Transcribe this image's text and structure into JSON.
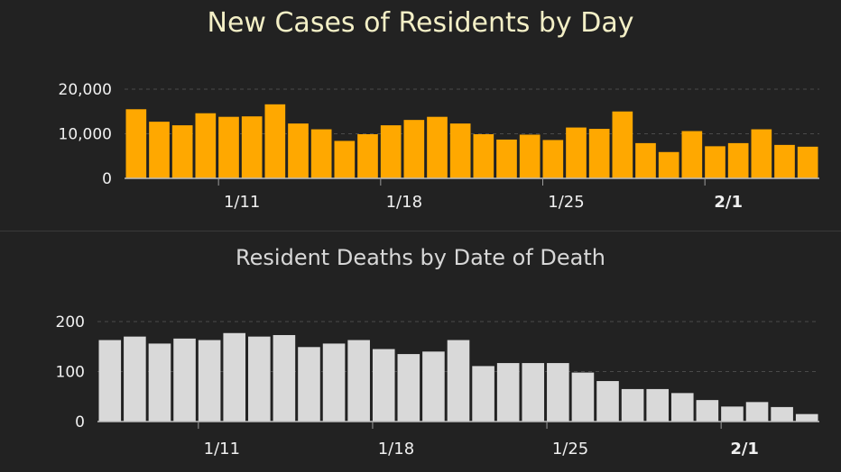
{
  "chart_data": [
    {
      "type": "bar",
      "title": "New Cases of Residents by Day",
      "bar_color": "#ffa800",
      "ylim": [
        0,
        20000
      ],
      "yticks": [
        {
          "value": 0,
          "label": "0"
        },
        {
          "value": 10000,
          "label": "10,000"
        },
        {
          "value": 20000,
          "label": "20,000"
        }
      ],
      "xticks": [
        {
          "index": 4,
          "label": "1/11",
          "bold": false
        },
        {
          "index": 11,
          "label": "1/18",
          "bold": false
        },
        {
          "index": 18,
          "label": "1/25",
          "bold": false
        },
        {
          "index": 25,
          "label": "2/1",
          "bold": true
        }
      ],
      "grid": "dashed horizontal",
      "values": [
        15500,
        12700,
        11900,
        14600,
        13800,
        13900,
        16600,
        12300,
        11000,
        8400,
        9900,
        11900,
        13100,
        13800,
        12300,
        9900,
        8700,
        9800,
        8600,
        11400,
        11100,
        15000,
        7900,
        5900,
        10600,
        7200,
        7900,
        11000,
        7500,
        7100
      ]
    },
    {
      "type": "bar",
      "title": "Resident Deaths by Date of Death",
      "bar_color": "#d9d9d9",
      "ylim": [
        0,
        200
      ],
      "yticks": [
        {
          "value": 0,
          "label": "0"
        },
        {
          "value": 100,
          "label": "100"
        },
        {
          "value": 200,
          "label": "200"
        }
      ],
      "xticks": [
        {
          "index": 4,
          "label": "1/11",
          "bold": false
        },
        {
          "index": 11,
          "label": "1/18",
          "bold": false
        },
        {
          "index": 18,
          "label": "1/25",
          "bold": false
        },
        {
          "index": 25,
          "label": "2/1",
          "bold": true
        }
      ],
      "grid": "dashed horizontal",
      "values": [
        163,
        170,
        156,
        166,
        163,
        177,
        170,
        173,
        149,
        156,
        163,
        145,
        135,
        140,
        163,
        111,
        117,
        117,
        117,
        98,
        81,
        65,
        65,
        57,
        43,
        30,
        39,
        29,
        15
      ]
    }
  ]
}
